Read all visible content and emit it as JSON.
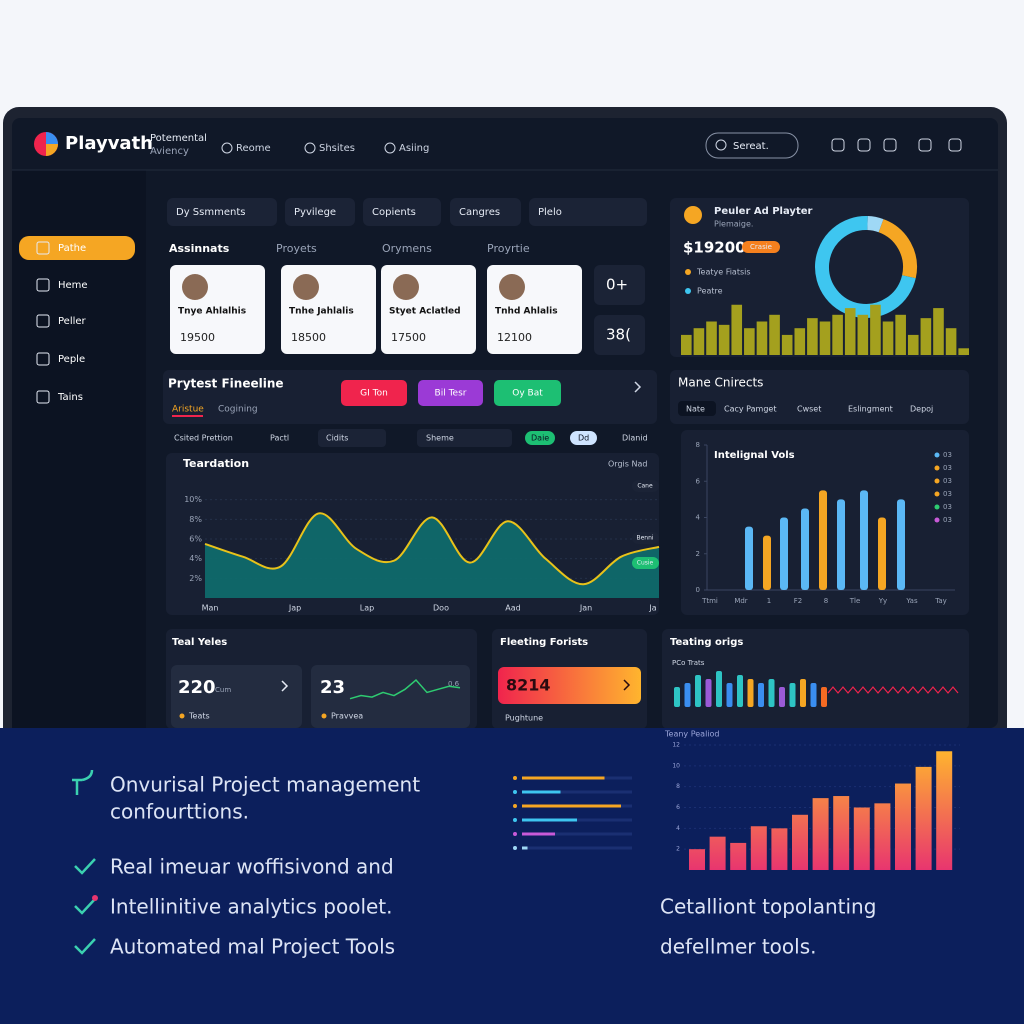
{
  "brand": {
    "name": "Playvath",
    "tagline": [
      "Potemental",
      "Aviency"
    ]
  },
  "nav": [
    "Reome",
    "Shsites",
    "Asiing"
  ],
  "search": "Sereat.",
  "sidebar": [
    "Pathe",
    "Heme",
    "Peller",
    "Peple",
    "Tains"
  ],
  "filters": [
    "Dy Ssmments",
    "Pyvilege",
    "Copients",
    "Cangres",
    "Plelo"
  ],
  "assignments": {
    "tabs": [
      "Assinnats",
      "Proyets",
      "Orymens",
      "Proyrtie"
    ],
    "cards": [
      {
        "name": "Tnye Ahlalhis",
        "amount": "19500"
      },
      {
        "name": "Tnhe Jahlalis",
        "amount": "18500"
      },
      {
        "name": "Styet Aclatled",
        "amount": "17500"
      },
      {
        "name": "Tnhd Ahlalis",
        "amount": "12100"
      }
    ],
    "side": [
      "0+",
      "38("
    ]
  },
  "player": {
    "title": "Peuler Ad Playter",
    "subtitle": "Plemaige.",
    "amount": "$19200",
    "badge": "Crasie",
    "legend": [
      {
        "name": "Teatye Fiatsis",
        "color": "#f5a623"
      },
      {
        "name": "Peatre",
        "color": "#3ec6f0"
      }
    ],
    "donut": {
      "values": [
        23,
        72,
        5
      ],
      "colors": [
        "#f5a623",
        "#3ec6f0",
        "#9fd8f5"
      ]
    },
    "bars": {
      "values": [
        3,
        4,
        5,
        4.5,
        7.5,
        4,
        5,
        6,
        3,
        4,
        5.5,
        5,
        6,
        7,
        6,
        7.5,
        5,
        6,
        3,
        5.5,
        7,
        4,
        1
      ],
      "ylim": [
        0,
        10
      ],
      "color": "#a4a01e"
    }
  },
  "timeline": {
    "title": "Prytest Fineeline",
    "tabs": [
      "Aristue",
      "Cogining"
    ],
    "buttons": [
      {
        "label": "GI Ton",
        "color": "#f0244d"
      },
      {
        "label": "Bil Tesr",
        "color": "#9b3ad6"
      },
      {
        "label": "Oy Bat",
        "color": "#1dbf73"
      }
    ],
    "filters": [
      "Csited Prettion",
      "Pactl",
      "Cidits",
      "Sheme",
      "Daie",
      "Dd",
      "Dlanid"
    ]
  },
  "trend_chart": {
    "type": "area",
    "title": "Teardation",
    "legend": "Orgis Nad",
    "tags": [
      "Cane",
      "Benni",
      "Cusie"
    ],
    "ylim": [
      0,
      12
    ],
    "yticks": [
      {
        "value": 2,
        "label": "2%"
      },
      {
        "value": 4,
        "label": "4%"
      },
      {
        "value": 6,
        "label": "6%"
      },
      {
        "value": 8,
        "label": "8%"
      },
      {
        "value": 10,
        "label": "10%"
      }
    ],
    "xlabels": [
      "Man",
      "Jap",
      "Lap",
      "Doo",
      "Aad",
      "Jan",
      "Ja"
    ],
    "values": [
      5.5,
      4.2,
      3.2,
      8.6,
      5.0,
      3.8,
      8.2,
      3.6,
      7.8,
      4.0,
      1.4,
      4.2,
      5.2
    ],
    "color": "#e8c21a",
    "fill": "#0e6e6e"
  },
  "contracts": {
    "title": "Mane Cnirects",
    "tabs": [
      "Nate",
      "Cacy Pamget",
      "Cwset",
      "Eslingment",
      "Depoj"
    ]
  },
  "volume_chart": {
    "type": "bar",
    "title": "Intelignal Vols",
    "categories": [
      "Ttmi",
      "Mdr",
      "1",
      "F2",
      "8",
      "Tle",
      "Yy",
      "Yas",
      "Tay"
    ],
    "values": [
      3.5,
      3.0,
      4.0,
      4.5,
      5.5,
      5.0,
      5.5,
      4.0,
      5.0
    ],
    "colors": [
      "#5bb8f5",
      "#f5a623",
      "#5bb8f5",
      "#5bb8f5",
      "#f5a623",
      "#5bb8f5",
      "#5bb8f5",
      "#f5a623",
      "#5bb8f5"
    ],
    "ylim": [
      0,
      8
    ],
    "yticks": [
      0,
      2,
      4,
      6,
      8
    ],
    "legend": [
      {
        "name": "03",
        "color": "#5bb8f5"
      },
      {
        "name": "03",
        "color": "#f5a623"
      },
      {
        "name": "03",
        "color": "#f5a623"
      },
      {
        "name": "03",
        "color": "#f5a623"
      },
      {
        "name": "03",
        "color": "#2ecc71"
      },
      {
        "name": "03",
        "color": "#c85ad8"
      }
    ]
  },
  "totals": {
    "title": "Teal Yeles",
    "cards": [
      {
        "value": "220",
        "unit": "Cum",
        "note": "Teats"
      },
      {
        "value": "23",
        "unit": "0.6",
        "note": "Pravvea"
      }
    ],
    "sparkline": [
      3,
      4,
      3.5,
      5,
      4,
      6,
      9,
      5,
      6,
      7,
      6.5
    ]
  },
  "fleeting": {
    "title": "Fleeting Forists",
    "value": "8214",
    "note": "Pughtune"
  },
  "teating": {
    "title": "Teating origs",
    "subtitle": "PCo Trats",
    "values": [
      5,
      6,
      8,
      7,
      9,
      6,
      8,
      7,
      6,
      7,
      5,
      6,
      7,
      6,
      5
    ],
    "colors": [
      "#2ec4c4",
      "#3a8ef0",
      "#2ec4c4",
      "#9b5ad6",
      "#2ec4c4",
      "#3a8ef0",
      "#2ec4c4",
      "#f5a623",
      "#3a8ef0",
      "#2ec4c4",
      "#9b5ad6",
      "#2ec4c4",
      "#f5a623",
      "#3a8ef0",
      "#f56a23"
    ]
  },
  "features": [
    "Onvurisal Project management",
    "confourttions.",
    "Real imeuar woffisivond and",
    "Intellinitive analytics poolet.",
    "Automated mal Project Tools"
  ],
  "tagline": [
    "Cetalliont topolanting",
    "defellmer tools."
  ],
  "progress": {
    "values": [
      0.75,
      0.35,
      0.9,
      0.5,
      0.3,
      0.05
    ],
    "colors": [
      "#f5a623",
      "#3ec6f0",
      "#f5a623",
      "#3ec6f0",
      "#c85ad8",
      "#9fd8f5"
    ]
  },
  "period_chart": {
    "type": "bar",
    "title": "Teany Pealiod",
    "ylim": [
      0,
      12
    ],
    "yticks": [
      2,
      4,
      6,
      8,
      10,
      12
    ],
    "values": [
      2,
      3.2,
      2.6,
      4.2,
      4,
      5.3,
      6.9,
      7.1,
      6,
      6.4,
      8.3,
      9.9,
      11.4
    ]
  }
}
